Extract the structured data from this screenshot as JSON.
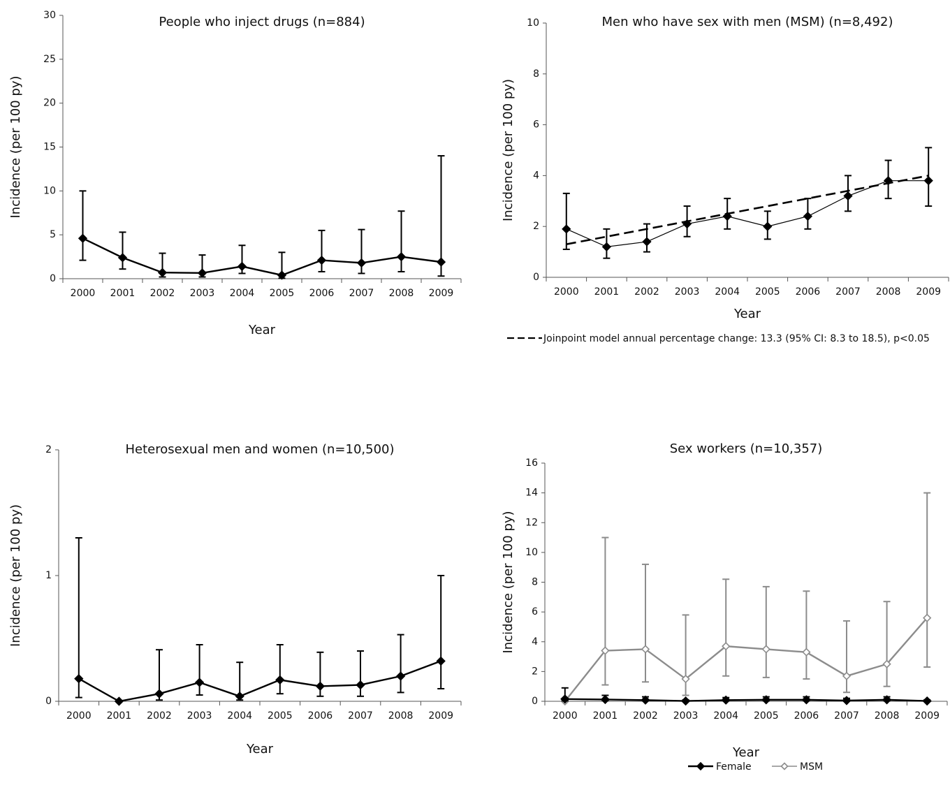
{
  "chart_data": [
    {
      "type": "line",
      "title": "People who inject drugs (n=884)",
      "xlabel": "Year",
      "ylabel": "Incidence (per 100 py)",
      "categories": [
        "2000",
        "2001",
        "2002",
        "2003",
        "2004",
        "2005",
        "2006",
        "2007",
        "2008",
        "2009"
      ],
      "ylim": [
        0,
        30
      ],
      "yticks": [
        "0",
        "5",
        "10",
        "15",
        "20",
        "25",
        "30"
      ],
      "grid": false,
      "series": [
        {
          "color": "#000000",
          "marker": "filled-diamond",
          "values": [
            4.6,
            2.4,
            0.7,
            0.65,
            1.4,
            0.4,
            2.1,
            1.8,
            2.5,
            1.9
          ],
          "error_low": [
            2.1,
            1.1,
            0.2,
            0.2,
            0.6,
            0.05,
            0.8,
            0.6,
            0.8,
            0.3
          ],
          "error_high": [
            10.0,
            5.3,
            2.9,
            2.7,
            3.8,
            3.0,
            5.5,
            5.6,
            7.7,
            14.0
          ]
        }
      ]
    },
    {
      "type": "line",
      "title": "Men who have sex with men (MSM) (n=8,492)",
      "xlabel": "Year",
      "ylabel": "Incidence (per 100 py)",
      "categories": [
        "2000",
        "2001",
        "2002",
        "2003",
        "2004",
        "2005",
        "2006",
        "2007",
        "2008",
        "2009"
      ],
      "ylim": [
        0,
        10
      ],
      "yticks": [
        "0",
        "2",
        "4",
        "6",
        "8",
        "10"
      ],
      "grid": false,
      "series": [
        {
          "color": "#000000",
          "marker": "filled-diamond",
          "values": [
            1.9,
            1.2,
            1.4,
            2.1,
            2.4,
            2.0,
            2.4,
            3.2,
            3.8,
            3.8
          ],
          "error_low": [
            1.1,
            0.75,
            1.0,
            1.6,
            1.9,
            1.5,
            1.9,
            2.6,
            3.1,
            2.8
          ],
          "error_high": [
            3.3,
            1.9,
            2.1,
            2.8,
            3.1,
            2.6,
            3.1,
            4.0,
            4.6,
            5.1
          ]
        }
      ],
      "trend": {
        "label": "Joinpoint model annual percentage change: 13.3 (95% CI: 8.3 to 18.5), p<0.05",
        "start": 1.3,
        "end": 4.0
      }
    },
    {
      "type": "line",
      "title": "Heterosexual men and women (n=10,500)",
      "xlabel": "Year",
      "ylabel": "Incidence (per 100 py)",
      "categories": [
        "2000",
        "2001",
        "2002",
        "2003",
        "2004",
        "2005",
        "2006",
        "2007",
        "2008",
        "2009"
      ],
      "ylim": [
        0,
        2
      ],
      "yticks": [
        "0",
        "1",
        "2"
      ],
      "grid": false,
      "series": [
        {
          "color": "#000000",
          "marker": "filled-diamond",
          "values": [
            0.18,
            0.0,
            0.06,
            0.15,
            0.04,
            0.17,
            0.12,
            0.13,
            0.2,
            0.32
          ],
          "error_low": [
            0.03,
            0.0,
            0.01,
            0.05,
            0.01,
            0.06,
            0.04,
            0.04,
            0.07,
            0.1
          ],
          "error_high": [
            1.3,
            0.0,
            0.41,
            0.45,
            0.31,
            0.45,
            0.39,
            0.4,
            0.53,
            1.0
          ]
        }
      ]
    },
    {
      "type": "line",
      "title": "Sex workers (n=10,357)",
      "xlabel": "Year",
      "ylabel": "Incidence (per 100 py)",
      "categories": [
        "2000",
        "2001",
        "2002",
        "2003",
        "2004",
        "2005",
        "2006",
        "2007",
        "2008",
        "2009"
      ],
      "ylim": [
        0,
        16
      ],
      "yticks": [
        "0",
        "2",
        "4",
        "6",
        "8",
        "10",
        "12",
        "14",
        "16"
      ],
      "grid": false,
      "legend": "bottom",
      "series": [
        {
          "name": "Female",
          "color": "#000000",
          "marker": "filled-diamond",
          "values": [
            0.15,
            0.12,
            0.08,
            0.02,
            0.08,
            0.1,
            0.1,
            0.05,
            0.1,
            0.02
          ],
          "error_low": [
            0.03,
            0.05,
            0.03,
            0.0,
            0.03,
            0.04,
            0.04,
            0.01,
            0.03,
            0.0
          ],
          "error_high": [
            0.9,
            0.4,
            0.3,
            0.1,
            0.25,
            0.3,
            0.3,
            0.2,
            0.3,
            0.1
          ]
        },
        {
          "name": "MSM",
          "color": "#8c8c8c",
          "marker": "open-diamond",
          "values": [
            0.0,
            3.4,
            3.5,
            1.5,
            3.7,
            3.5,
            3.3,
            1.7,
            2.5,
            5.6
          ],
          "error_low": [
            0.0,
            1.1,
            1.3,
            0.4,
            1.7,
            1.6,
            1.5,
            0.6,
            1.0,
            2.3
          ],
          "error_high": [
            0.0,
            11.0,
            9.2,
            5.8,
            8.2,
            7.7,
            7.4,
            5.4,
            6.7,
            14.0
          ]
        }
      ]
    }
  ]
}
